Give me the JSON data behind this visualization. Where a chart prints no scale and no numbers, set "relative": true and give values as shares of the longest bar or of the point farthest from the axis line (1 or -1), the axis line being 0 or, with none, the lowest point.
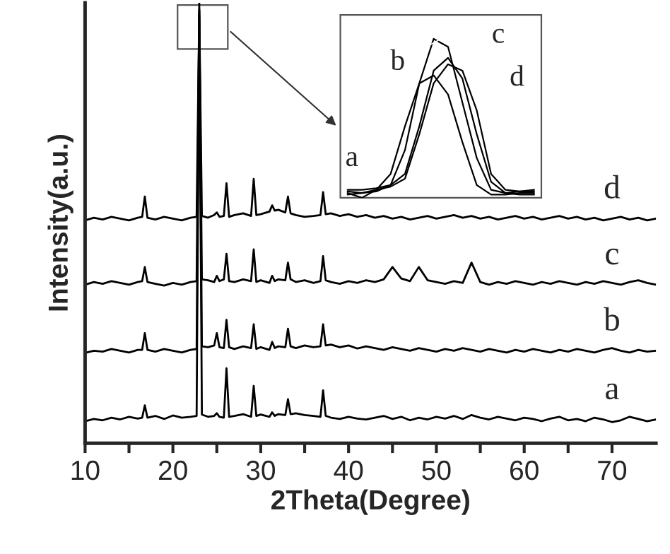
{
  "chart_data": [
    {
      "type": "line",
      "relative": true,
      "xlabel": "2Theta(Degree)",
      "ylabel": "Intensity(a.u.)",
      "x": [
        10,
        11,
        12,
        13,
        14,
        15,
        16,
        16.5,
        16.8,
        17.1,
        18,
        19,
        20,
        21,
        22,
        22.7,
        23,
        23.3,
        24,
        24.7,
        25,
        25.3,
        25.8,
        26.1,
        26.4,
        27,
        28,
        28.9,
        29.2,
        29.5,
        30,
        31,
        31.3,
        31.6,
        32,
        32.8,
        33.1,
        33.4,
        34,
        35,
        36,
        36.8,
        37.1,
        37.4,
        38,
        39,
        40,
        41,
        42,
        43,
        44,
        45,
        46,
        47,
        48,
        49,
        50,
        51,
        52,
        53,
        54,
        55,
        56,
        57,
        58,
        59,
        60,
        61,
        62,
        63,
        64,
        65,
        66,
        67,
        68,
        69,
        70,
        71,
        72,
        73,
        74,
        75
      ],
      "xlim": [
        10,
        75
      ],
      "xticks": [
        10,
        {
          "value": 15,
          "label": null
        },
        20,
        {
          "value": 25,
          "label": null
        },
        30,
        {
          "value": 35,
          "label": null
        },
        40,
        {
          "value": 45,
          "label": null
        },
        50,
        {
          "value": 55,
          "label": null
        },
        60,
        {
          "value": 65,
          "label": null
        },
        70
      ],
      "grid": false,
      "legend": false,
      "series": [
        {
          "name": "a",
          "color": "#000000",
          "values": [
            0.05,
            0.055,
            0.052,
            0.058,
            0.054,
            0.06,
            0.056,
            0.058,
            0.086,
            0.058,
            0.062,
            0.055,
            0.063,
            0.058,
            0.06,
            0.062,
            0.97,
            0.065,
            0.06,
            0.062,
            0.068,
            0.06,
            0.058,
            0.17,
            0.06,
            0.062,
            0.066,
            0.06,
            0.13,
            0.062,
            0.065,
            0.06,
            0.07,
            0.062,
            0.066,
            0.064,
            0.1,
            0.066,
            0.068,
            0.064,
            0.062,
            0.06,
            0.12,
            0.062,
            0.058,
            0.055,
            0.06,
            0.056,
            0.054,
            0.058,
            0.062,
            0.055,
            0.06,
            0.052,
            0.058,
            0.054,
            0.06,
            0.056,
            0.062,
            0.055,
            0.064,
            0.058,
            0.054,
            0.06,
            0.056,
            0.052,
            0.058,
            0.055,
            0.05,
            0.056,
            0.06,
            0.052,
            0.055,
            0.05,
            0.058,
            0.054,
            0.048,
            0.052,
            0.06,
            0.055,
            0.05,
            0.054
          ]
        },
        {
          "name": "b",
          "color": "#000000",
          "values": [
            0.205,
            0.21,
            0.208,
            0.214,
            0.21,
            0.206,
            0.212,
            0.212,
            0.25,
            0.212,
            0.208,
            0.214,
            0.21,
            0.206,
            0.212,
            0.214,
            1.0,
            0.22,
            0.218,
            0.222,
            0.25,
            0.218,
            0.216,
            0.28,
            0.218,
            0.214,
            0.22,
            0.216,
            0.27,
            0.214,
            0.218,
            0.212,
            0.23,
            0.216,
            0.22,
            0.218,
            0.26,
            0.22,
            0.216,
            0.222,
            0.218,
            0.22,
            0.27,
            0.222,
            0.224,
            0.218,
            0.222,
            0.215,
            0.22,
            0.216,
            0.212,
            0.218,
            0.214,
            0.21,
            0.216,
            0.212,
            0.208,
            0.214,
            0.21,
            0.216,
            0.212,
            0.208,
            0.214,
            0.21,
            0.206,
            0.212,
            0.208,
            0.214,
            0.21,
            0.206,
            0.212,
            0.208,
            0.214,
            0.21,
            0.206,
            0.212,
            0.216,
            0.21,
            0.206,
            0.212,
            0.208,
            0.21
          ]
        },
        {
          "name": "c",
          "color": "#000000",
          "values": [
            0.36,
            0.366,
            0.362,
            0.368,
            0.364,
            0.36,
            0.366,
            0.368,
            0.4,
            0.366,
            0.362,
            0.358,
            0.364,
            0.36,
            0.366,
            0.368,
            0.985,
            0.372,
            0.37,
            0.366,
            0.38,
            0.368,
            0.372,
            0.43,
            0.368,
            0.366,
            0.372,
            0.368,
            0.44,
            0.366,
            0.37,
            0.364,
            0.38,
            0.368,
            0.372,
            0.37,
            0.41,
            0.372,
            0.366,
            0.37,
            0.364,
            0.368,
            0.425,
            0.37,
            0.366,
            0.362,
            0.368,
            0.364,
            0.37,
            0.366,
            0.372,
            0.4,
            0.374,
            0.368,
            0.4,
            0.37,
            0.366,
            0.362,
            0.368,
            0.364,
            0.41,
            0.366,
            0.36,
            0.366,
            0.362,
            0.368,
            0.364,
            0.36,
            0.366,
            0.362,
            0.368,
            0.364,
            0.36,
            0.366,
            0.362,
            0.368,
            0.364,
            0.36,
            0.366,
            0.37,
            0.364,
            0.36
          ]
        },
        {
          "name": "d",
          "color": "#000000",
          "values": [
            0.506,
            0.512,
            0.508,
            0.514,
            0.51,
            0.506,
            0.512,
            0.514,
            0.56,
            0.512,
            0.508,
            0.514,
            0.51,
            0.506,
            0.512,
            0.514,
            0.98,
            0.516,
            0.512,
            0.518,
            0.524,
            0.514,
            0.516,
            0.59,
            0.514,
            0.518,
            0.522,
            0.516,
            0.6,
            0.518,
            0.52,
            0.526,
            0.54,
            0.528,
            0.53,
            0.524,
            0.56,
            0.522,
            0.518,
            0.514,
            0.516,
            0.518,
            0.57,
            0.52,
            0.522,
            0.516,
            0.52,
            0.514,
            0.518,
            0.512,
            0.516,
            0.51,
            0.514,
            0.508,
            0.512,
            0.516,
            0.51,
            0.514,
            0.518,
            0.512,
            0.516,
            0.51,
            0.514,
            0.508,
            0.512,
            0.516,
            0.51,
            0.514,
            0.508,
            0.512,
            0.516,
            0.51,
            0.514,
            0.508,
            0.512,
            0.506,
            0.51,
            0.514,
            0.508,
            0.512,
            0.506,
            0.51
          ]
        }
      ]
    },
    {
      "type": "line",
      "relative": true,
      "grid": false,
      "legend": false,
      "tick_labels": false,
      "categories": [
        null,
        null,
        null,
        null,
        null,
        null,
        null,
        null,
        null,
        null,
        null,
        null,
        null,
        null
      ],
      "series": [
        {
          "name": "a",
          "color": "#000000",
          "values": [
            0.03,
            0.0,
            0.05,
            0.15,
            0.45,
            0.72,
            0.77,
            0.65,
            0.35,
            0.08,
            0.02,
            0.02,
            0.03,
            0.03
          ]
        },
        {
          "name": "b",
          "color": "#000000",
          "values": [
            0.02,
            0.03,
            0.04,
            0.08,
            0.3,
            0.72,
            1.0,
            0.95,
            0.6,
            0.25,
            0.05,
            0.03,
            0.02,
            0.02
          ]
        },
        {
          "name": "c",
          "color": "#000000",
          "values": [
            0.05,
            0.05,
            0.06,
            0.08,
            0.15,
            0.45,
            0.8,
            0.88,
            0.75,
            0.4,
            0.1,
            0.03,
            0.04,
            0.05
          ]
        },
        {
          "name": "d",
          "color": "#000000",
          "values": [
            0.04,
            0.03,
            0.05,
            0.07,
            0.12,
            0.4,
            0.72,
            0.84,
            0.8,
            0.55,
            0.15,
            0.05,
            0.04,
            0.04
          ]
        }
      ]
    }
  ]
}
